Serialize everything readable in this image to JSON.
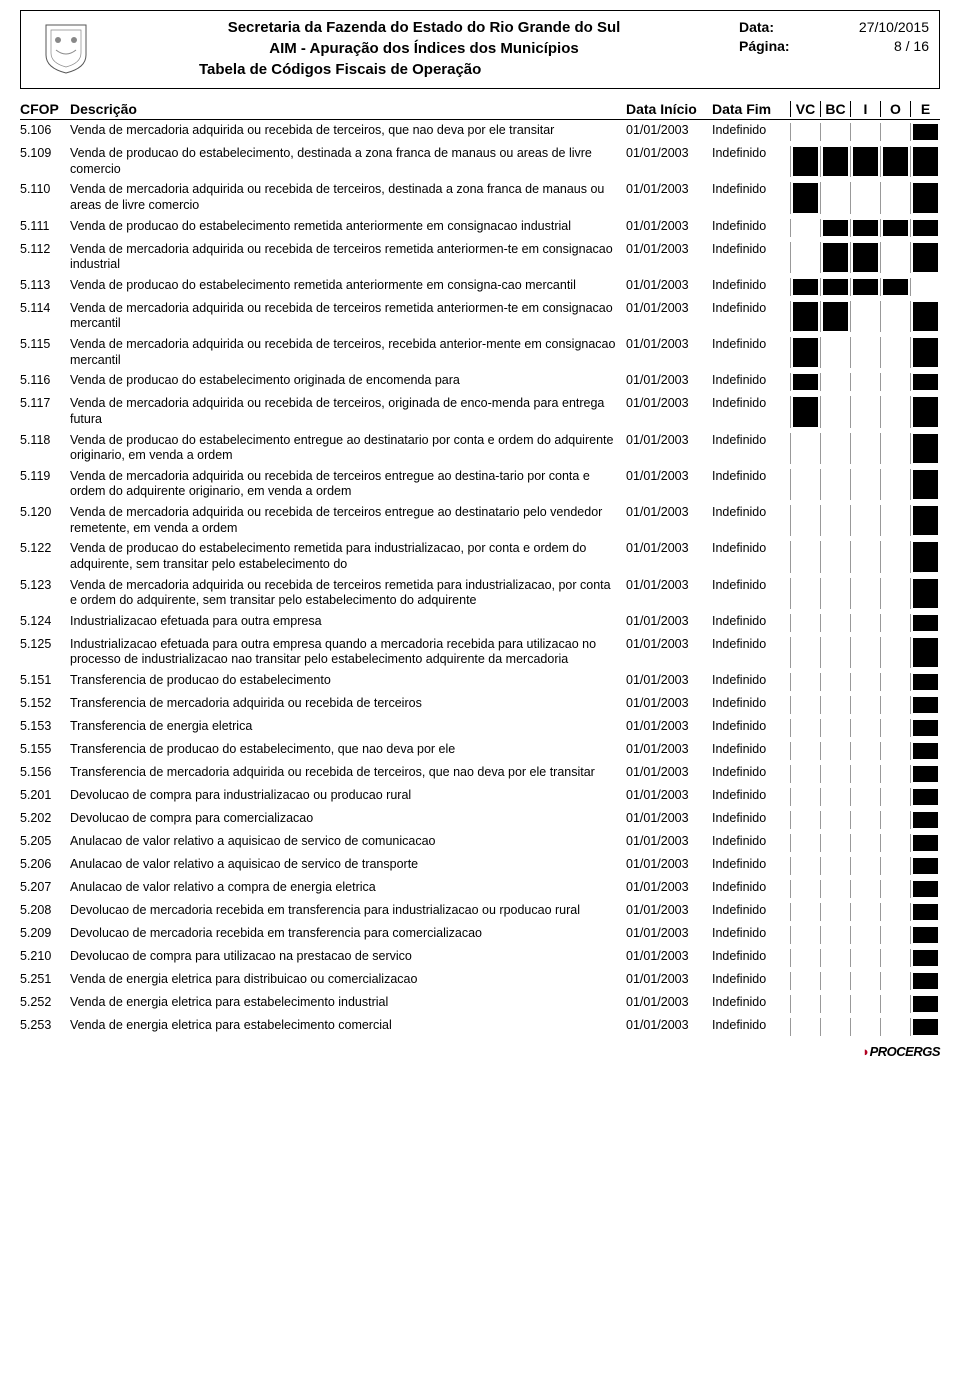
{
  "header": {
    "org": "Secretaria da Fazenda do Estado do Rio Grande do Sul",
    "system": "AIM - Apuração dos Índices dos Municípios",
    "report": "Tabela de Códigos Fiscais de Operação",
    "date_label": "Data:",
    "date_value": "27/10/2015",
    "page_label": "Página:",
    "page_value": "8 / 16"
  },
  "columns": {
    "cfop": "CFOP",
    "desc": "Descrição",
    "di": "Data Início",
    "df": "Data Fim",
    "vc": "VC",
    "bc": "BC",
    "i": "I",
    "o": "O",
    "e": "E"
  },
  "flag_colors": {
    "on": "#000000",
    "off": "#ffffff"
  },
  "rows": [
    {
      "cfop": "5.106",
      "desc": "Venda de mercadoria adquirida ou recebida de terceiros, que nao deva por ele transitar",
      "di": "01/01/2003",
      "df": "Indefinido",
      "f": [
        0,
        0,
        0,
        0,
        1
      ]
    },
    {
      "cfop": "5.109",
      "desc": "Venda de producao do estabelecimento, destinada a zona franca de manaus ou areas de livre comercio",
      "di": "01/01/2003",
      "df": "Indefinido",
      "f": [
        1,
        1,
        1,
        1,
        1
      ]
    },
    {
      "cfop": "5.110",
      "desc": "Venda de mercadoria adquirida ou recebida de terceiros, destinada a zona franca de manaus ou areas de livre comercio",
      "di": "01/01/2003",
      "df": "Indefinido",
      "f": [
        1,
        0,
        0,
        0,
        1
      ]
    },
    {
      "cfop": "5.111",
      "desc": "Venda de producao do estabelecimento remetida anteriormente em consignacao industrial",
      "di": "01/01/2003",
      "df": "Indefinido",
      "f": [
        0,
        1,
        1,
        1,
        1
      ]
    },
    {
      "cfop": "5.112",
      "desc": "Venda de mercadoria adquirida ou recebida de terceiros remetida anteriormen-te em consignacao industrial",
      "di": "01/01/2003",
      "df": "Indefinido",
      "f": [
        0,
        1,
        1,
        0,
        1
      ]
    },
    {
      "cfop": "5.113",
      "desc": "Venda de producao do estabelecimento remetida anteriormente em consigna-cao mercantil",
      "di": "01/01/2003",
      "df": "Indefinido",
      "f": [
        1,
        1,
        1,
        1,
        0
      ]
    },
    {
      "cfop": "5.114",
      "desc": "Venda de mercadoria adquirida ou recebida de terceiros remetida anteriormen-te em consignacao mercantil",
      "di": "01/01/2003",
      "df": "Indefinido",
      "f": [
        1,
        1,
        0,
        0,
        1
      ]
    },
    {
      "cfop": "5.115",
      "desc": "Venda de mercadoria adquirida ou recebida de terceiros, recebida anterior-mente em consignacao mercantil",
      "di": "01/01/2003",
      "df": "Indefinido",
      "f": [
        1,
        0,
        0,
        0,
        1
      ]
    },
    {
      "cfop": "5.116",
      "desc": "Venda de producao do estabelecimento originada de encomenda para",
      "di": "01/01/2003",
      "df": "Indefinido",
      "f": [
        1,
        0,
        0,
        0,
        1
      ]
    },
    {
      "cfop": "5.117",
      "desc": "Venda de mercadoria adquirida ou recebida de terceiros, originada de enco-menda para entrega futura",
      "di": "01/01/2003",
      "df": "Indefinido",
      "f": [
        1,
        0,
        0,
        0,
        1
      ]
    },
    {
      "cfop": "5.118",
      "desc": "Venda de producao do estabelecimento entregue ao destinatario por conta e ordem do adquirente originario, em venda a ordem",
      "di": "01/01/2003",
      "df": "Indefinido",
      "f": [
        0,
        0,
        0,
        0,
        1
      ]
    },
    {
      "cfop": "5.119",
      "desc": "Venda de mercadoria adquirida ou recebida de terceiros entregue ao destina-tario por conta e ordem do adquirente originario, em venda a ordem",
      "di": "01/01/2003",
      "df": "Indefinido",
      "f": [
        0,
        0,
        0,
        0,
        1
      ]
    },
    {
      "cfop": "5.120",
      "desc": "Venda de mercadoria adquirida ou recebida de terceiros entregue ao destinatario pelo vendedor remetente, em venda a ordem",
      "di": "01/01/2003",
      "df": "Indefinido",
      "f": [
        0,
        0,
        0,
        0,
        1
      ]
    },
    {
      "cfop": "5.122",
      "desc": "Venda de producao do estabelecimento remetida para industrializacao, por conta e ordem do adquirente, sem transitar pelo estabelecimento do",
      "di": "01/01/2003",
      "df": "Indefinido",
      "f": [
        0,
        0,
        0,
        0,
        1
      ]
    },
    {
      "cfop": "5.123",
      "desc": "Venda de mercadoria adquirida ou recebida de terceiros remetida para industrializacao, por conta e ordem do adquirente, sem transitar pelo estabelecimento do adquirente",
      "di": "01/01/2003",
      "df": "Indefinido",
      "f": [
        0,
        0,
        0,
        0,
        1
      ]
    },
    {
      "cfop": "5.124",
      "desc": "Industrializacao efetuada para outra empresa",
      "di": "01/01/2003",
      "df": "Indefinido",
      "f": [
        0,
        0,
        0,
        0,
        1
      ]
    },
    {
      "cfop": "5.125",
      "desc": "Industrializacao efetuada para outra empresa quando a mercadoria recebida para utilizacao no processo de industrializacao nao transitar pelo estabelecimento adquirente da mercadoria",
      "di": "01/01/2003",
      "df": "Indefinido",
      "f": [
        0,
        0,
        0,
        0,
        1
      ]
    },
    {
      "cfop": "5.151",
      "desc": "Transferencia de producao do estabelecimento",
      "di": "01/01/2003",
      "df": "Indefinido",
      "f": [
        0,
        0,
        0,
        0,
        1
      ]
    },
    {
      "cfop": "5.152",
      "desc": "Transferencia de mercadoria adquirida ou recebida de terceiros",
      "di": "01/01/2003",
      "df": "Indefinido",
      "f": [
        0,
        0,
        0,
        0,
        1
      ]
    },
    {
      "cfop": "5.153",
      "desc": "Transferencia de energia eletrica",
      "di": "01/01/2003",
      "df": "Indefinido",
      "f": [
        0,
        0,
        0,
        0,
        1
      ]
    },
    {
      "cfop": "5.155",
      "desc": "Transferencia de producao do estabelecimento, que nao deva por ele",
      "di": "01/01/2003",
      "df": "Indefinido",
      "f": [
        0,
        0,
        0,
        0,
        1
      ]
    },
    {
      "cfop": "5.156",
      "desc": "Transferencia de mercadoria adquirida ou recebida de terceiros, que nao deva por ele transitar",
      "di": "01/01/2003",
      "df": "Indefinido",
      "f": [
        0,
        0,
        0,
        0,
        1
      ]
    },
    {
      "cfop": "5.201",
      "desc": "Devolucao de compra para industrializacao ou producao rural",
      "di": "01/01/2003",
      "df": "Indefinido",
      "f": [
        0,
        0,
        0,
        0,
        1
      ]
    },
    {
      "cfop": "5.202",
      "desc": "Devolucao de compra para comercializacao",
      "di": "01/01/2003",
      "df": "Indefinido",
      "f": [
        0,
        0,
        0,
        0,
        1
      ]
    },
    {
      "cfop": "5.205",
      "desc": "Anulacao de valor relativo a aquisicao de servico de comunicacao",
      "di": "01/01/2003",
      "df": "Indefinido",
      "f": [
        0,
        0,
        0,
        0,
        1
      ]
    },
    {
      "cfop": "5.206",
      "desc": "Anulacao de valor relativo a aquisicao de servico de transporte",
      "di": "01/01/2003",
      "df": "Indefinido",
      "f": [
        0,
        0,
        0,
        0,
        1
      ]
    },
    {
      "cfop": "5.207",
      "desc": "Anulacao de valor relativo a compra de energia eletrica",
      "di": "01/01/2003",
      "df": "Indefinido",
      "f": [
        0,
        0,
        0,
        0,
        1
      ]
    },
    {
      "cfop": "5.208",
      "desc": "Devolucao de mercadoria recebida em transferencia para industrializacao ou rpoducao rural",
      "di": "01/01/2003",
      "df": "Indefinido",
      "f": [
        0,
        0,
        0,
        0,
        1
      ]
    },
    {
      "cfop": "5.209",
      "desc": "Devolucao de mercadoria recebida em transferencia para comercializacao",
      "di": "01/01/2003",
      "df": "Indefinido",
      "f": [
        0,
        0,
        0,
        0,
        1
      ]
    },
    {
      "cfop": "5.210",
      "desc": "Devolucao de compra para utilizacao na prestacao de servico",
      "di": "01/01/2003",
      "df": "Indefinido",
      "f": [
        0,
        0,
        0,
        0,
        1
      ]
    },
    {
      "cfop": "5.251",
      "desc": "Venda de energia eletrica para distribuicao ou comercializacao",
      "di": "01/01/2003",
      "df": "Indefinido",
      "f": [
        0,
        0,
        0,
        0,
        1
      ]
    },
    {
      "cfop": "5.252",
      "desc": "Venda de energia eletrica para estabelecimento industrial",
      "di": "01/01/2003",
      "df": "Indefinido",
      "f": [
        0,
        0,
        0,
        0,
        1
      ]
    },
    {
      "cfop": "5.253",
      "desc": "Venda de energia eletrica para estabelecimento comercial",
      "di": "01/01/2003",
      "df": "Indefinido",
      "f": [
        0,
        0,
        0,
        0,
        1
      ]
    }
  ],
  "footer": {
    "vendor": "PROCERGS"
  }
}
